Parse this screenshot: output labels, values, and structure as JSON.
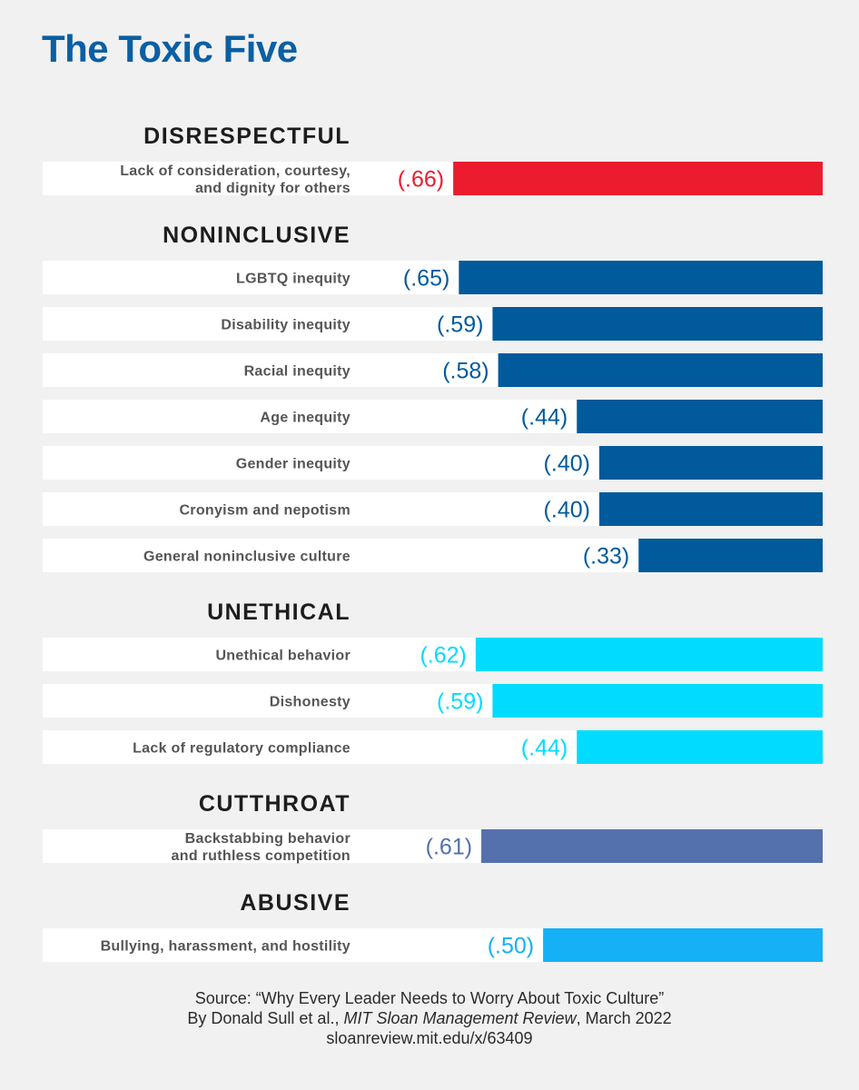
{
  "page": {
    "title": "The Toxic Five",
    "title_color": "#0a5fa3"
  },
  "chart_data": {
    "type": "bar",
    "orientation": "horizontal",
    "title": "The Toxic Five",
    "xlim": [
      0,
      1
    ],
    "grid": false,
    "legend": "none",
    "groups": [
      {
        "name": "DISRESPECTFUL",
        "color": "#ec1c2e",
        "items": [
          {
            "label_lines": [
              "Lack of consideration, courtesy,",
              "and dignity for others"
            ],
            "value": 0.66,
            "value_label": "(.66)"
          }
        ]
      },
      {
        "name": "NONINCLUSIVE",
        "color": "#005a9c",
        "items": [
          {
            "label_lines": [
              "LGBTQ inequity"
            ],
            "value": 0.65,
            "value_label": "(.65)"
          },
          {
            "label_lines": [
              "Disability inequity"
            ],
            "value": 0.59,
            "value_label": "(.59)"
          },
          {
            "label_lines": [
              "Racial inequity"
            ],
            "value": 0.58,
            "value_label": "(.58)"
          },
          {
            "label_lines": [
              "Age inequity"
            ],
            "value": 0.44,
            "value_label": "(.44)"
          },
          {
            "label_lines": [
              "Gender inequity"
            ],
            "value": 0.4,
            "value_label": "(.40)"
          },
          {
            "label_lines": [
              "Cronyism and nepotism"
            ],
            "value": 0.4,
            "value_label": "(.40)"
          },
          {
            "label_lines": [
              "General noninclusive culture"
            ],
            "value": 0.33,
            "value_label": "(.33)"
          }
        ]
      },
      {
        "name": "UNETHICAL",
        "color": "#00dcff",
        "items": [
          {
            "label_lines": [
              "Unethical behavior"
            ],
            "value": 0.62,
            "value_label": "(.62)"
          },
          {
            "label_lines": [
              "Dishonesty"
            ],
            "value": 0.59,
            "value_label": "(.59)"
          },
          {
            "label_lines": [
              "Lack of regulatory compliance"
            ],
            "value": 0.44,
            "value_label": "(.44)"
          }
        ]
      },
      {
        "name": "CUTTHROAT",
        "color": "#5470ad",
        "items": [
          {
            "label_lines": [
              "Backstabbing behavior",
              "and ruthless competition"
            ],
            "value": 0.61,
            "value_label": "(.61)"
          }
        ]
      },
      {
        "name": "ABUSIVE",
        "color": "#14b1f7",
        "items": [
          {
            "label_lines": [
              "Bullying, harassment, and hostility"
            ],
            "value": 0.5,
            "value_label": "(.50)"
          }
        ]
      }
    ]
  },
  "source": {
    "line1": "Source: “Why Every Leader Needs to Worry About Toxic Culture”",
    "line2_prefix": "By Donald Sull et al., ",
    "line2_italic": "MIT Sloan Management Review",
    "line2_suffix": ", March 2022",
    "line3": "sloanreview.mit.edu/x/63409"
  }
}
